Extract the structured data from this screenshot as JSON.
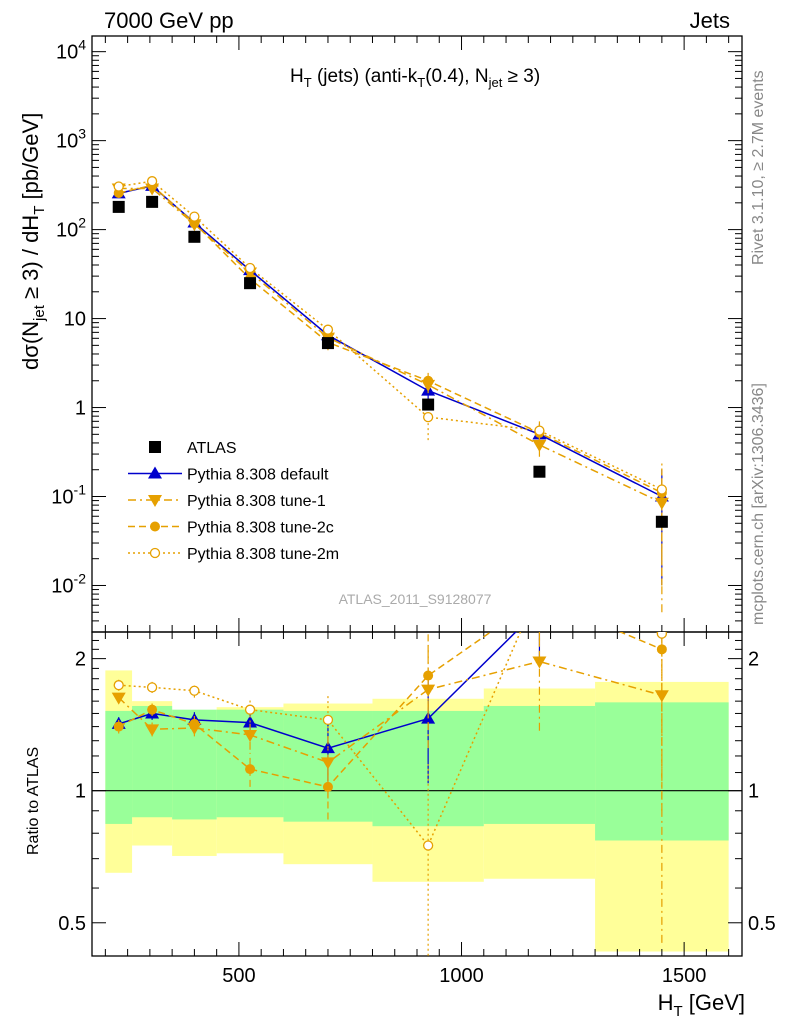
{
  "header": {
    "left": "7000 GeV pp",
    "right": "Jets"
  },
  "side_labels": {
    "rivet": "Rivet 3.1.10, ≥ 2.7M events",
    "mcplots": "mcplots.cern.ch [arXiv:1306.3436]"
  },
  "watermark": "ATLAS_2011_S9128077",
  "title_parts": {
    "a": "H",
    "a_sub": "T",
    "b": " (jets) (anti-k",
    "b_sub": "T",
    "c": "(0.4), N",
    "c_sub": "jet",
    "d": " ≥ 3)"
  },
  "ylabel_main": "dσ(N_jet ≥ 3) / dH_T [pb/GeV]",
  "ylabel_ratio": "Ratio to ATLAS",
  "xlabel": "H_T [GeV]",
  "colors": {
    "data": "#000000",
    "default": "#0000cc",
    "tune": "#e6a000",
    "band_inner": "#99ff99",
    "band_outer": "#ffff99"
  },
  "chart_data": {
    "type": "scatter",
    "x_edges": [
      200,
      260,
      350,
      450,
      600,
      800,
      1050,
      1300,
      1600
    ],
    "x": [
      230,
      305,
      400,
      525,
      700,
      925,
      1175,
      1450
    ],
    "xlim": [
      170,
      1630
    ],
    "ylim_main": [
      0.003,
      15000
    ],
    "ylim_ratio": [
      0.42,
      2.3
    ],
    "main_yscale": "log",
    "series": [
      {
        "name": "ATLAS",
        "values": [
          180,
          205,
          83,
          25,
          5.3,
          1.08,
          0.19,
          0.052
        ],
        "err_lo": [
          0,
          0,
          0,
          0,
          0,
          0,
          0.02,
          0
        ],
        "err_hi": [
          0,
          0,
          0,
          0,
          0,
          0,
          0.03,
          0
        ]
      },
      {
        "name": "Pythia 8.308 default",
        "values": [
          255,
          310,
          120,
          35,
          6.5,
          1.55,
          0.5,
          0.1
        ],
        "err_lo": [
          8,
          10,
          6,
          3,
          1,
          0.35,
          0.1,
          0.09
        ],
        "err_hi": [
          8,
          10,
          6,
          3,
          1,
          0.35,
          0.15,
          0.1
        ]
      },
      {
        "name": "Pythia 8.308 tune-1",
        "values": [
          290,
          290,
          115,
          33,
          6.1,
          1.8,
          0.38,
          0.085
        ],
        "err_lo": [
          8,
          10,
          6,
          3,
          1,
          0.35,
          0.1,
          0.08
        ],
        "err_hi": [
          8,
          10,
          6,
          3,
          1,
          0.35,
          0.15,
          0.1
        ]
      },
      {
        "name": "Pythia 8.308 tune-2c",
        "values": [
          258,
          315,
          118,
          28,
          5.4,
          2.0,
          0.52,
          0.11
        ],
        "err_lo": [
          8,
          10,
          6,
          3,
          1,
          0.45,
          0.1,
          0.1
        ],
        "err_hi": [
          8,
          10,
          6,
          3,
          1,
          0.45,
          0.15,
          0.1
        ]
      },
      {
        "name": "Pythia 8.308 tune-2m",
        "values": [
          305,
          350,
          140,
          37,
          7.5,
          0.78,
          0.55,
          0.12
        ],
        "err_lo": [
          8,
          10,
          6,
          3,
          1,
          0.35,
          0.1,
          0.11
        ],
        "err_hi": [
          8,
          10,
          6,
          3,
          1,
          0.35,
          0.15,
          0.12
        ]
      }
    ],
    "ratio": {
      "band_inner": [
        [
          0.84,
          1.52
        ],
        [
          0.87,
          1.56
        ],
        [
          0.86,
          1.53
        ],
        [
          0.87,
          1.53
        ],
        [
          0.85,
          1.52
        ],
        [
          0.83,
          1.52
        ],
        [
          0.84,
          1.56
        ],
        [
          0.77,
          1.59
        ]
      ],
      "band_outer": [
        [
          0.65,
          1.88
        ],
        [
          0.75,
          1.6
        ],
        [
          0.71,
          1.52
        ],
        [
          0.72,
          1.55
        ],
        [
          0.68,
          1.58
        ],
        [
          0.62,
          1.62
        ],
        [
          0.63,
          1.71
        ],
        [
          0.43,
          1.77
        ]
      ],
      "series": [
        {
          "name": "Pythia 8.308 default",
          "values": [
            1.42,
            1.5,
            1.45,
            1.43,
            1.25,
            1.46,
            2.6,
            null
          ],
          "err": [
            0.05,
            0.05,
            0.06,
            0.1,
            0.2,
            0.42,
            0.6,
            0.5
          ]
        },
        {
          "name": "Pythia 8.308 tune-1",
          "values": [
            1.63,
            1.38,
            1.39,
            1.34,
            1.16,
            1.7,
            1.97,
            1.65
          ],
          "err": [
            0.05,
            0.05,
            0.06,
            0.1,
            0.2,
            0.45,
            0.6,
            1.2
          ]
        },
        {
          "name": "Pythia 8.308 tune-2c",
          "values": [
            1.4,
            1.53,
            1.42,
            1.12,
            1.02,
            1.83,
            2.75,
            2.1
          ],
          "err": [
            0.05,
            0.05,
            0.06,
            0.1,
            0.16,
            0.45,
            0.6,
            1.2
          ]
        },
        {
          "name": "Pythia 8.308 tune-2m",
          "values": [
            1.74,
            1.72,
            1.69,
            1.53,
            1.45,
            0.75,
            2.9,
            2.28
          ],
          "err": [
            0.05,
            0.05,
            0.06,
            0.1,
            0.2,
            0.4,
            0.6,
            1.2
          ]
        }
      ]
    },
    "x_ticks": [
      500,
      1000,
      1500
    ],
    "ratio_ticks": [
      0.5,
      1,
      2
    ]
  }
}
